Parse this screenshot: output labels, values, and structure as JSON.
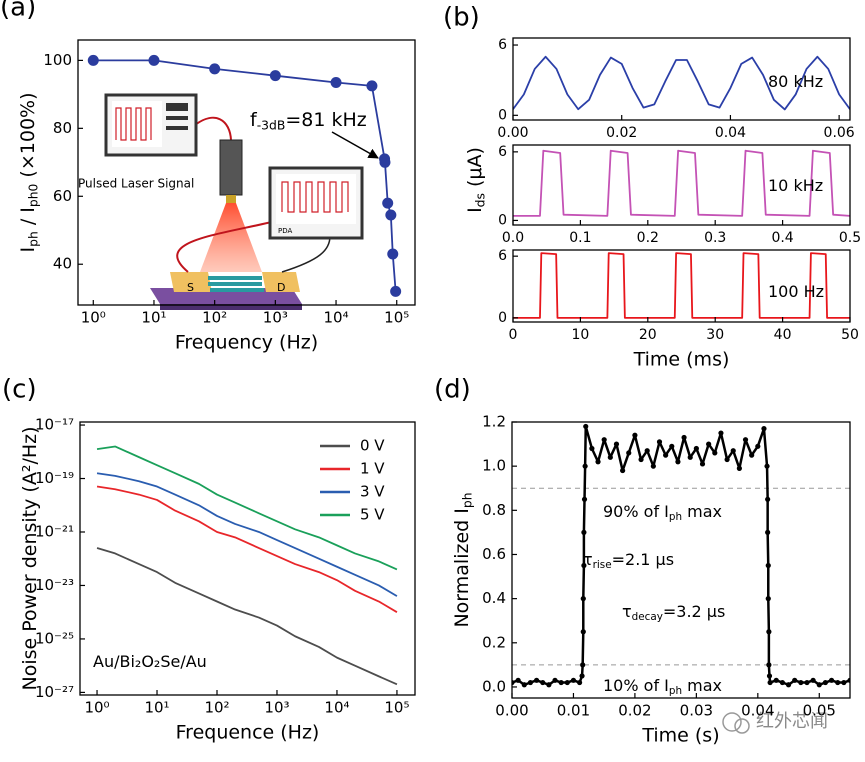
{
  "watermark": "红外芯闻",
  "chart_data": [
    {
      "panel": "(a)",
      "type": "line",
      "xlog": true,
      "xlim": [
        0.56,
        200000
      ],
      "ylim": [
        28,
        106
      ],
      "xticks": [
        {
          "value": 1,
          "label": "10⁰"
        },
        {
          "value": 10,
          "label": "10¹"
        },
        {
          "value": 100,
          "label": "10²"
        },
        {
          "value": 1000,
          "label": "10³"
        },
        {
          "value": 10000,
          "label": "10⁴"
        },
        {
          "value": 100000,
          "label": "10⁵"
        }
      ],
      "yticks": [
        40,
        60,
        80,
        100
      ],
      "xlabel": "Frequency (Hz)",
      "ylabel": [
        "I",
        "ph",
        " / I",
        "ph0",
        " (×100%)"
      ],
      "markers": true,
      "series": [
        {
          "color": "#2b3c9e",
          "x": [
            1,
            10,
            100,
            1000,
            10000,
            39000,
            63000,
            64000,
            71000,
            80000,
            86000,
            96000
          ],
          "values": [
            100,
            100,
            97.5,
            95.5,
            93.5,
            92.5,
            71,
            70,
            58,
            54.5,
            43,
            32
          ]
        }
      ],
      "annotations": [
        [
          "f",
          "-3dB",
          "=81 kHz"
        ]
      ],
      "inset_labels": [
        "Pulsed Laser Signal",
        "PDA",
        "S",
        "D"
      ]
    },
    {
      "panel": "(b)",
      "type": "line",
      "xlim": [
        0,
        0.062
      ],
      "ylim": [
        -0.4,
        6.6
      ],
      "xticks": [
        {
          "value": 0,
          "label": "0.00"
        },
        0.02,
        0.04,
        0.06
      ],
      "yticks": [
        0,
        6
      ],
      "series": [
        {
          "color": "#2b3fa8",
          "x": [
            0,
            0.002,
            0.004,
            0.006,
            0.008,
            0.01,
            0.012,
            0.014,
            0.016,
            0.018,
            0.02,
            0.022,
            0.024,
            0.026,
            0.028,
            0.03,
            0.032,
            0.034,
            0.036,
            0.038,
            0.04,
            0.042,
            0.044,
            0.046,
            0.048,
            0.05,
            0.052,
            0.054,
            0.056,
            0.058,
            0.06,
            0.062
          ],
          "values": [
            0.52,
            1.79,
            3.96,
            5.0,
            3.96,
            1.79,
            0.52,
            1.32,
            3.45,
            4.93,
            4.39,
            2.33,
            0.66,
            0.93,
            2.89,
            4.72,
            4.72,
            2.89,
            0.93,
            0.66,
            2.33,
            4.39,
            4.93,
            3.45,
            1.32,
            0.5,
            1.78,
            3.96,
            5.0,
            3.96,
            1.79,
            0.52
          ]
        }
      ],
      "annotations": [
        [
          "80 kHz"
        ]
      ]
    },
    {
      "type": "line",
      "xlim": [
        0,
        0.5
      ],
      "ylim": [
        -0.4,
        6.6
      ],
      "xticks": [
        {
          "value": 0,
          "label": "0.0"
        },
        0.1,
        0.2,
        0.3,
        0.4,
        0.5
      ],
      "yticks": [
        0,
        6
      ],
      "ylabel": [
        "I",
        "ds",
        " (μA)"
      ],
      "series": [
        {
          "color": "#c452b5",
          "x": [
            0,
            0.04,
            0.045,
            0.07,
            0.075,
            0.14,
            0.145,
            0.17,
            0.175,
            0.24,
            0.245,
            0.27,
            0.275,
            0.34,
            0.345,
            0.37,
            0.375,
            0.44,
            0.445,
            0.47,
            0.475,
            0.5
          ],
          "values": [
            0.4,
            0.4,
            6.1,
            5.9,
            0.5,
            0.4,
            6.1,
            5.9,
            0.5,
            0.4,
            6.1,
            5.9,
            0.5,
            0.4,
            6.1,
            5.9,
            0.5,
            0.4,
            6.1,
            5.9,
            0.5,
            0.4
          ]
        }
      ],
      "annotations": [
        [
          "10 kHz"
        ]
      ]
    },
    {
      "type": "line",
      "xlim": [
        0,
        50
      ],
      "ylim": [
        -0.4,
        6.6
      ],
      "xticks": [
        0,
        10,
        20,
        30,
        40,
        50
      ],
      "yticks": [
        0,
        6
      ],
      "xlabel": "Time (ms)",
      "series": [
        {
          "color": "#e8161b",
          "x": [
            0,
            4,
            4.2,
            6.4,
            6.6,
            14,
            14.2,
            16.4,
            16.6,
            24,
            24.2,
            26.4,
            26.6,
            34,
            34.2,
            36.4,
            36.6,
            44,
            44.2,
            46.4,
            46.6,
            50
          ],
          "values": [
            0,
            0,
            6.3,
            6.2,
            0,
            0,
            6.3,
            6.2,
            0,
            0,
            6.3,
            6.2,
            0,
            0,
            6.3,
            6.2,
            0,
            0,
            6.3,
            6.2,
            0,
            0
          ]
        }
      ],
      "annotations": [
        [
          "100 Hz"
        ]
      ]
    },
    {
      "panel": "(c)",
      "type": "line",
      "xlog": true,
      "ylog": true,
      "xlim": [
        0.52,
        200000
      ],
      "ylim": [
        8e-28,
        1.3e-17
      ],
      "xticks": [
        {
          "value": 1,
          "label": "10⁰"
        },
        {
          "value": 10,
          "label": "10¹"
        },
        {
          "value": 100,
          "label": "10²"
        },
        {
          "value": 1000,
          "label": "10³"
        },
        {
          "value": 10000,
          "label": "10⁴"
        },
        {
          "value": 100000,
          "label": "10⁵"
        }
      ],
      "yticks": [
        {
          "value": 1e-17,
          "label": "10⁻¹⁷"
        },
        {
          "value": 1e-19,
          "label": "10⁻¹⁹"
        },
        {
          "value": 1e-21,
          "label": "10⁻²¹"
        },
        {
          "value": 1e-23,
          "label": "10⁻²³"
        },
        {
          "value": 1e-25,
          "label": "10⁻²⁵"
        },
        {
          "value": 1e-27,
          "label": "10⁻²⁷"
        }
      ],
      "xlabel": "Frequence (Hz)",
      "ylabel": [
        "Noise Power density (A²/Hz)"
      ],
      "legend": "upper right",
      "series": [
        {
          "name": "0 V",
          "color": "#4d4d4d",
          "x": [
            1,
            2,
            5,
            10,
            20,
            50,
            100,
            200,
            500,
            1000,
            2000,
            5000,
            10000,
            20000,
            50000,
            100000
          ],
          "values": [
            2.51e-22,
            1.58e-22,
            6.31e-23,
            3.16e-23,
            1.26e-23,
            5.01e-24,
            2.51e-24,
            1.26e-24,
            6.31e-25,
            3.16e-25,
            1.26e-25,
            5.01e-26,
            2e-26,
            1e-26,
            3.98e-27,
            2e-27
          ]
        },
        {
          "name": "1 V",
          "color": "#e8262a",
          "x": [
            1,
            2,
            5,
            10,
            20,
            50,
            100,
            200,
            500,
            1000,
            2000,
            5000,
            10000,
            20000,
            50000,
            100000
          ],
          "values": [
            5.01e-20,
            3.98e-20,
            2.51e-20,
            1.58e-20,
            6.31e-21,
            2.51e-21,
            1e-21,
            6.31e-22,
            2.51e-22,
            1.26e-22,
            6.31e-23,
            3.16e-23,
            1.58e-23,
            6.31e-24,
            2.51e-24,
            1e-24
          ]
        },
        {
          "name": "3 V",
          "color": "#2a5db0",
          "x": [
            1,
            2,
            5,
            10,
            20,
            50,
            100,
            200,
            500,
            1000,
            2000,
            5000,
            10000,
            20000,
            50000,
            100000
          ],
          "values": [
            1.58e-19,
            1.26e-19,
            7.94e-20,
            5.01e-20,
            2.51e-20,
            1e-20,
            3.98e-21,
            2e-21,
            1e-21,
            5.01e-22,
            2.51e-22,
            1e-22,
            5.01e-23,
            2.51e-23,
            1e-23,
            3.98e-24
          ]
        },
        {
          "name": "5 V",
          "color": "#1aa05a",
          "x": [
            1,
            2,
            5,
            10,
            20,
            50,
            100,
            200,
            500,
            1000,
            2000,
            5000,
            10000,
            20000,
            50000,
            100000
          ],
          "values": [
            1.26e-18,
            1.58e-18,
            6.31e-19,
            3.16e-19,
            1.58e-19,
            6.31e-20,
            2.51e-20,
            1.26e-20,
            5.01e-21,
            2.51e-21,
            1.26e-21,
            6.31e-22,
            3.16e-22,
            1.58e-22,
            7.94e-23,
            3.98e-23
          ]
        }
      ],
      "annotations": [
        [
          "Au/Bi₂O₂Se/Au"
        ]
      ]
    },
    {
      "panel": "(d)",
      "type": "line",
      "xlim": [
        0,
        0.055
      ],
      "ylim": [
        -0.05,
        1.2
      ],
      "xticks": [
        {
          "value": 0,
          "label": "0.00"
        },
        0.01,
        0.02,
        0.03,
        0.04,
        0.05
      ],
      "yticks": [
        {
          "value": 0,
          "label": "0.0"
        },
        0.2,
        0.4,
        0.6,
        0.8,
        {
          "value": 1,
          "label": "1.0"
        },
        1.2
      ],
      "xlabel": "Time (s)",
      "ylabel": [
        "Normalized I",
        "ph"
      ],
      "markers": true,
      "hlines": [
        0.9,
        0.1
      ],
      "series": [
        {
          "color": "#000000",
          "x": [
            0,
            0.001,
            0.002,
            0.003,
            0.004,
            0.005,
            0.006,
            0.007,
            0.008,
            0.009,
            0.01,
            0.011,
            0.0114,
            0.0115,
            0.0116,
            0.0116,
            0.0117,
            0.0117,
            0.0118,
            0.0119,
            0.012,
            0.013,
            0.014,
            0.015,
            0.016,
            0.017,
            0.018,
            0.019,
            0.02,
            0.021,
            0.022,
            0.023,
            0.024,
            0.025,
            0.026,
            0.027,
            0.028,
            0.029,
            0.03,
            0.031,
            0.032,
            0.033,
            0.034,
            0.035,
            0.036,
            0.037,
            0.038,
            0.039,
            0.04,
            0.041,
            0.0415,
            0.0416,
            0.0416,
            0.0417,
            0.0417,
            0.0418,
            0.0418,
            0.0419,
            0.042,
            0.043,
            0.044,
            0.045,
            0.046,
            0.047,
            0.048,
            0.049,
            0.05,
            0.051,
            0.052,
            0.053,
            0.054,
            0.055
          ],
          "values": [
            0.02,
            0.03,
            0.01,
            0.02,
            0.03,
            0.02,
            0.01,
            0.03,
            0.02,
            0.02,
            0.03,
            0.02,
            0.05,
            0.1,
            0.25,
            0.4,
            0.55,
            0.7,
            0.85,
            1.0,
            1.18,
            1.08,
            1.02,
            1.12,
            1.04,
            1.1,
            0.98,
            1.06,
            1.14,
            1.03,
            1.07,
            1.0,
            1.11,
            1.05,
            1.09,
            1.02,
            1.13,
            1.04,
            1.08,
            1.01,
            1.1,
            1.06,
            1.15,
            1.03,
            1.07,
            0.99,
            1.12,
            1.05,
            1.09,
            1.17,
            1.0,
            0.85,
            0.7,
            0.55,
            0.4,
            0.25,
            0.1,
            0.05,
            0.02,
            0.03,
            0.02,
            0.01,
            0.03,
            0.02,
            0.02,
            0.03,
            0.01,
            0.02,
            0.03,
            0.02,
            0.02,
            0.03
          ]
        }
      ],
      "annotations": [
        [
          "90% of I",
          "ph",
          " max"
        ],
        [
          "τ",
          "rise",
          "=2.1 μs"
        ],
        [
          "τ",
          "decay",
          "=3.2 μs"
        ],
        [
          "10% of I",
          "ph",
          " max"
        ]
      ]
    }
  ]
}
